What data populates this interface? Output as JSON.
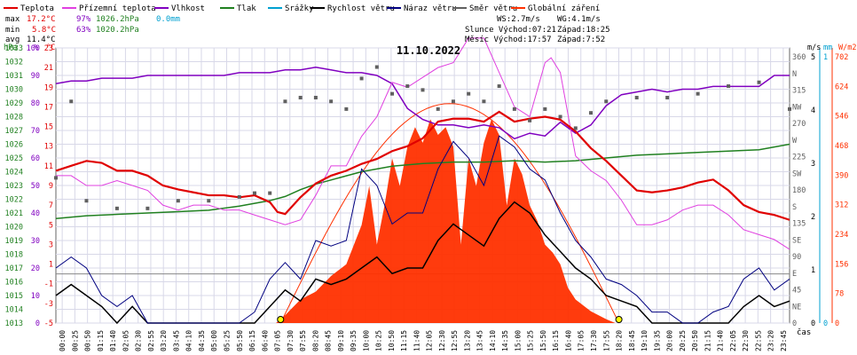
{
  "legend": [
    {
      "label": "Teplota",
      "color": "#e00000"
    },
    {
      "label": "Přízemní teplota",
      "color": "#e040e0"
    },
    {
      "label": "Vlhkost",
      "color": "#8000c0"
    },
    {
      "label": "Tlak",
      "color": "#208020"
    },
    {
      "label": "Srážky",
      "color": "#00a0d0"
    },
    {
      "label": "Rychlost větru",
      "color": "#000000"
    },
    {
      "label": "Náraz větru",
      "color": "#000080"
    },
    {
      "label": "Směr větru",
      "color": "#606060"
    },
    {
      "label": "Globální záření",
      "color": "#ff3000"
    }
  ],
  "stats": {
    "max": {
      "label": "max",
      "temp": "17.2°C",
      "hum": "97%",
      "press": "1026.2hPa",
      "rain": "0.0mm"
    },
    "min": {
      "label": "min",
      "temp": "5.8°C",
      "hum": "63%",
      "press": "1020.2hPa"
    },
    "avg": {
      "label": "avg",
      "temp": "11.4°C"
    }
  },
  "wind_info": {
    "ws": "WS:2.7m/s",
    "wg": "WG:4.1m/s"
  },
  "sun_info": {
    "sun": "Slunce Východ:07:21",
    "sun_set": "Západ:18:25",
    "moon": "Měsíc  Východ:17:57",
    "moon_set": "Západ:7:52"
  },
  "date_title": "11.10.2022",
  "units": {
    "hpa": "hPa",
    "pct": "%",
    "degc": "°C",
    "ms": "m/s",
    "mm": "mm",
    "cas": "čas",
    "wm2": "W/m2"
  },
  "colors": {
    "grid": "#d8d8e8",
    "zero": "#888888",
    "bg": "#ffffff"
  },
  "chart_data": {
    "type": "line",
    "title": "11.10.2022",
    "x_ticks": [
      "00:00",
      "00:25",
      "00:50",
      "01:15",
      "01:40",
      "02:05",
      "02:30",
      "02:55",
      "03:20",
      "03:45",
      "04:10",
      "04:35",
      "05:00",
      "05:25",
      "05:50",
      "06:15",
      "06:40",
      "07:05",
      "07:30",
      "07:55",
      "08:20",
      "08:45",
      "09:10",
      "09:35",
      "10:00",
      "10:25",
      "10:50",
      "11:15",
      "11:40",
      "12:05",
      "12:30",
      "12:55",
      "13:20",
      "13:45",
      "14:10",
      "14:35",
      "15:00",
      "15:25",
      "15:50",
      "16:15",
      "16:40",
      "17:05",
      "17:30",
      "17:55",
      "18:20",
      "18:45",
      "19:10",
      "19:35",
      "20:00",
      "20:25",
      "20:50",
      "21:15",
      "21:40",
      "22:05",
      "22:30",
      "22:55",
      "23:20",
      "23:45"
    ],
    "axes": {
      "hpa": {
        "label": "hPa",
        "ticks": [
          "1033",
          "1032",
          "1031",
          "1030",
          "1029",
          "1028",
          "1027",
          "1026",
          "1025",
          "1024",
          "1023",
          "1022",
          "1021",
          "1020",
          "1019",
          "1018",
          "1017",
          "1016",
          "1015",
          "1014",
          "1013"
        ],
        "range": [
          1013,
          1033
        ]
      },
      "pct": {
        "label": "%",
        "ticks": [
          "100",
          "90",
          "80",
          "70",
          "60",
          "50",
          "40",
          "30",
          "20",
          "10",
          "0"
        ],
        "range": [
          0,
          100
        ]
      },
      "temp": {
        "label": "°C",
        "ticks": [
          "23",
          "21",
          "19",
          "17",
          "15",
          "13",
          "11",
          "9",
          "7",
          "5",
          "3",
          "1",
          "-1",
          "-3",
          "-5"
        ],
        "range": [
          -5,
          23
        ]
      },
      "dir": {
        "ticks": [
          "360",
          "N",
          "315",
          "NW",
          "270",
          "W",
          "225",
          "SW",
          "180",
          "S",
          "135",
          "SE",
          "90",
          "E",
          "45",
          "NE",
          "0"
        ]
      },
      "wind": {
        "label": "m/s",
        "ticks": [
          "5",
          "4",
          "3",
          "2",
          "1",
          "0"
        ],
        "range": [
          0,
          5
        ]
      },
      "rain": {
        "label": "mm",
        "ticks": [
          "1",
          "0"
        ],
        "range": [
          0,
          1
        ]
      },
      "rad": {
        "label": "W/m2",
        "ticks": [
          "702",
          "624",
          "546",
          "468",
          "390",
          "312",
          "234",
          "156",
          "78",
          "0"
        ],
        "range": [
          0,
          702
        ]
      }
    },
    "series": [
      {
        "name": "Teplota",
        "axis": "temp",
        "color": "#e00000",
        "x": [
          0,
          0.5,
          1,
          1.5,
          2,
          2.5,
          3,
          3.5,
          4,
          4.5,
          5,
          5.5,
          6,
          6.5,
          7,
          7.25,
          7.5,
          8,
          8.5,
          9,
          9.5,
          10,
          10.5,
          11,
          11.5,
          12,
          12.5,
          13,
          13.5,
          14,
          14.5,
          15,
          15.5,
          16,
          16.5,
          17,
          17.5,
          18,
          18.5,
          19,
          19.5,
          20,
          20.5,
          21,
          21.5,
          22,
          22.5,
          23,
          23.5,
          24
        ],
        "y": [
          10.5,
          11.0,
          11.5,
          11.3,
          10.5,
          10.5,
          10.0,
          9.0,
          8.6,
          8.3,
          8.0,
          8.0,
          7.8,
          8.0,
          7.3,
          6.3,
          6.1,
          7.8,
          9.2,
          10.0,
          10.5,
          11.2,
          11.7,
          12.5,
          13.0,
          13.8,
          15.5,
          15.8,
          15.8,
          15.5,
          16.5,
          15.5,
          15.8,
          16.0,
          15.7,
          14.5,
          12.8,
          11.5,
          10.0,
          8.5,
          8.3,
          8.5,
          8.8,
          9.3,
          9.6,
          8.5,
          7.0,
          6.3,
          6.0,
          5.5
        ]
      },
      {
        "name": "Přízemní teplota",
        "axis": "temp",
        "color": "#e040e0",
        "x": [
          0,
          0.5,
          1,
          1.5,
          2,
          2.5,
          3,
          3.5,
          4,
          4.5,
          5,
          5.5,
          6,
          6.5,
          7,
          7.5,
          8,
          8.5,
          9,
          9.5,
          10,
          10.5,
          11,
          11.5,
          12,
          12.5,
          13,
          13.5,
          14,
          14.5,
          15,
          15.5,
          16,
          16.2,
          16.5,
          17,
          17.5,
          18,
          18.5,
          19,
          19.5,
          20,
          20.5,
          21,
          21.5,
          22,
          22.5,
          23,
          23.5,
          24
        ],
        "y": [
          10.0,
          10.0,
          9.0,
          9.0,
          9.5,
          9.0,
          8.5,
          7.0,
          6.5,
          7.0,
          7.0,
          6.5,
          6.5,
          6.0,
          5.5,
          5.0,
          5.5,
          8.0,
          11.0,
          11.0,
          14.0,
          16.0,
          19.5,
          19.0,
          20.0,
          21.0,
          21.5,
          24.0,
          24.0,
          20.5,
          17.0,
          16.0,
          21.5,
          22.0,
          20.5,
          12.0,
          10.5,
          9.5,
          7.5,
          5.0,
          5.0,
          5.5,
          6.5,
          7.0,
          7.0,
          6.0,
          4.5,
          4.0,
          3.5,
          2.5
        ]
      },
      {
        "name": "Vlhkost",
        "axis": "pct",
        "color": "#8000c0",
        "x": [
          0,
          0.5,
          1,
          1.5,
          2,
          2.5,
          3,
          3.5,
          4,
          4.5,
          5,
          5.5,
          6,
          6.5,
          7,
          7.5,
          8,
          8.5,
          9,
          9.5,
          10,
          10.5,
          11,
          11.5,
          12,
          12.5,
          13,
          13.5,
          14,
          14.5,
          15,
          15.5,
          16,
          16.5,
          17,
          17.5,
          18,
          18.5,
          19,
          19.5,
          20,
          20.5,
          21,
          21.5,
          22,
          22.5,
          23,
          23.5,
          24
        ],
        "y": [
          87,
          88,
          88,
          89,
          89,
          89,
          90,
          90,
          90,
          90,
          90,
          90,
          91,
          91,
          91,
          92,
          92,
          93,
          92,
          91,
          91,
          90,
          87,
          78,
          74,
          72,
          72,
          71,
          72,
          71,
          67,
          69,
          68,
          73,
          69,
          72,
          79,
          83,
          84,
          85,
          84,
          85,
          85,
          86,
          86,
          86,
          86,
          90,
          90
        ]
      },
      {
        "name": "Tlak",
        "axis": "hpa",
        "color": "#208020",
        "x": [
          0,
          1,
          2,
          3,
          4,
          5,
          6,
          7,
          7.5,
          8,
          8.5,
          9,
          9.5,
          10,
          10.5,
          11,
          12,
          13,
          14,
          15,
          16,
          17,
          18,
          19,
          20,
          21,
          22,
          23,
          23.5,
          24
        ],
        "y": [
          1020.6,
          1020.8,
          1020.9,
          1021.0,
          1021.1,
          1021.2,
          1021.5,
          1021.9,
          1022.2,
          1022.7,
          1023.1,
          1023.4,
          1023.7,
          1024.0,
          1024.2,
          1024.4,
          1024.6,
          1024.7,
          1024.7,
          1024.8,
          1024.7,
          1024.8,
          1025.0,
          1025.2,
          1025.3,
          1025.4,
          1025.5,
          1025.6,
          1025.8,
          1026.0
        ]
      },
      {
        "name": "Rychlost větru",
        "axis": "wind",
        "color": "#000000",
        "x": [
          0,
          0.5,
          1,
          1.5,
          2,
          2.5,
          3,
          3.5,
          4,
          4.5,
          5,
          5.5,
          6,
          6.5,
          7,
          7.5,
          8,
          8.5,
          9,
          9.5,
          10,
          10.5,
          11,
          11.5,
          12,
          12.5,
          13,
          13.5,
          14,
          14.5,
          15,
          15.5,
          16,
          16.5,
          17,
          17.5,
          18,
          18.5,
          19,
          19.5,
          20,
          20.5,
          21,
          21.5,
          22,
          22.5,
          23,
          23.5,
          24
        ],
        "y": [
          0.5,
          0.7,
          0.5,
          0.3,
          0,
          0.3,
          0,
          0,
          0,
          0,
          0,
          0,
          0,
          0,
          0.3,
          0.6,
          0.4,
          0.8,
          0.7,
          0.8,
          1.0,
          1.2,
          0.9,
          1.0,
          1.0,
          1.5,
          1.8,
          1.6,
          1.4,
          1.9,
          2.2,
          2.0,
          1.6,
          1.3,
          1.0,
          0.8,
          0.5,
          0.4,
          0.3,
          0,
          0,
          0,
          0,
          0,
          0,
          0.3,
          0.5,
          0.3,
          0.4
        ]
      },
      {
        "name": "Náraz větru",
        "axis": "wind",
        "color": "#000080",
        "x": [
          0,
          0.5,
          1,
          1.5,
          2,
          2.5,
          3,
          3.5,
          4,
          4.5,
          5,
          5.5,
          6,
          6.5,
          7,
          7.5,
          8,
          8.5,
          9,
          9.5,
          10,
          10.5,
          11,
          11.5,
          12,
          12.5,
          13,
          13.5,
          14,
          14.5,
          15,
          15.5,
          16,
          16.5,
          17,
          17.5,
          18,
          18.5,
          19,
          19.5,
          20,
          20.5,
          21,
          21.5,
          22,
          22.5,
          23,
          23.5,
          24
        ],
        "y": [
          1.0,
          1.2,
          1.0,
          0.5,
          0.3,
          0.5,
          0,
          0,
          0,
          0,
          0,
          0,
          0,
          0.2,
          0.8,
          1.1,
          0.8,
          1.5,
          1.4,
          1.5,
          2.8,
          2.5,
          1.8,
          2.0,
          2.0,
          2.8,
          3.3,
          3.0,
          2.5,
          3.4,
          3.2,
          2.8,
          2.6,
          2.0,
          1.5,
          1.2,
          0.8,
          0.7,
          0.5,
          0.2,
          0.2,
          0,
          0,
          0.2,
          0.3,
          0.8,
          1.0,
          0.6,
          0.8
        ]
      },
      {
        "name": "Globální záření",
        "axis": "rad",
        "color": "#ff3000",
        "x": [
          7.2,
          7.5,
          8,
          8.5,
          9,
          9.5,
          10,
          10.25,
          10.5,
          10.75,
          11,
          11.25,
          11.5,
          11.75,
          12,
          12.25,
          12.5,
          12.75,
          13,
          13.25,
          13.5,
          13.75,
          14,
          14.25,
          14.5,
          14.75,
          15,
          15.25,
          15.5,
          15.75,
          16,
          16.25,
          16.5,
          16.75,
          17,
          17.5,
          18,
          18.3
        ],
        "y": [
          0,
          20,
          60,
          80,
          120,
          150,
          250,
          350,
          200,
          300,
          420,
          350,
          450,
          500,
          460,
          520,
          480,
          500,
          450,
          200,
          420,
          350,
          460,
          520,
          480,
          300,
          420,
          380,
          300,
          260,
          200,
          180,
          150,
          90,
          60,
          30,
          10,
          0
        ]
      },
      {
        "name": "Směr větru",
        "axis": "dir",
        "color": "#606060",
        "x": [
          0,
          0.5,
          1,
          2,
          3,
          4,
          5,
          6,
          6.5,
          7,
          7.5,
          8,
          8.5,
          9,
          9.5,
          10,
          10.5,
          11,
          11.5,
          12,
          12.5,
          13,
          13.5,
          14,
          14.5,
          15,
          15.5,
          16,
          16.5,
          17,
          17.5,
          18,
          19,
          20,
          21,
          22,
          23,
          24
        ],
        "y": [
          190,
          290,
          160,
          150,
          150,
          160,
          160,
          165,
          170,
          170,
          290,
          295,
          295,
          290,
          280,
          320,
          335,
          300,
          310,
          305,
          280,
          290,
          300,
          290,
          310,
          280,
          265,
          280,
          270,
          255,
          275,
          290,
          295,
          295,
          300,
          310,
          315,
          280
        ]
      }
    ],
    "sun_markers": {
      "sunrise": "07:21",
      "sunset": "18:25"
    }
  }
}
